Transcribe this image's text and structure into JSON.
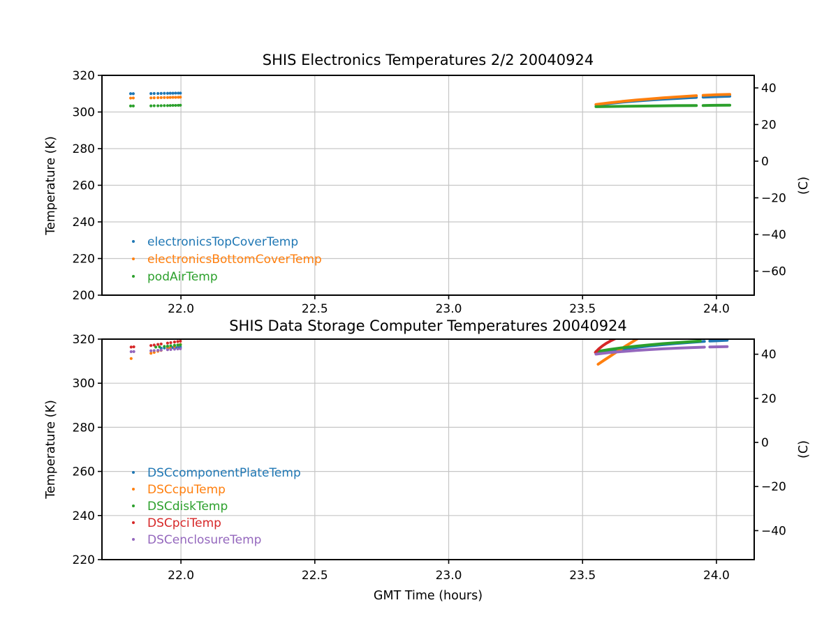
{
  "figure": {
    "background": "#ffffff",
    "grid_color": "#c6c6c6",
    "spine_color": "#000000",
    "celsius_offset": 273.15
  },
  "chart_data": [
    {
      "type": "scatter",
      "title": "SHIS Electronics Temperatures 2/2 20040924",
      "xlabel": "",
      "ylabel_left": "Temperature (K)",
      "ylabel_right": "(C)",
      "xlim": [
        21.705,
        24.141
      ],
      "ylim": [
        200,
        320
      ],
      "grid": true,
      "legend_position": "lower-left",
      "xticks": {
        "values": [
          22.0,
          22.5,
          23.0,
          23.5,
          24.0
        ],
        "labels": [
          "22.0",
          "22.5",
          "23.0",
          "23.5",
          "24.0"
        ]
      },
      "yticks_left": {
        "values": [
          200,
          220,
          240,
          260,
          280,
          300,
          320
        ],
        "labels": [
          "200",
          "220",
          "240",
          "260",
          "280",
          "300",
          "320"
        ]
      },
      "yticks_right_celsius": {
        "values": [
          40,
          20,
          0,
          -20,
          -40,
          -60
        ],
        "labels": [
          "40",
          "20",
          "0",
          "−20",
          "−40",
          "−60"
        ]
      },
      "series": [
        {
          "name": "electronicsTopCoverTemp",
          "color": "#1f77b4",
          "dots": [
            [
              21.812,
              310.0
            ],
            [
              21.822,
              310.0
            ],
            [
              21.888,
              310.05
            ],
            [
              21.9,
              310.1
            ],
            [
              21.914,
              310.1
            ],
            [
              21.926,
              310.15
            ],
            [
              21.938,
              310.2
            ],
            [
              21.95,
              310.2
            ],
            [
              21.96,
              310.25
            ],
            [
              21.97,
              310.25
            ],
            [
              21.98,
              310.3
            ],
            [
              21.99,
              310.3
            ],
            [
              21.998,
              310.3
            ]
          ],
          "line": [
            [
              23.55,
              303.9
            ],
            [
              23.6,
              304.7
            ],
            [
              23.65,
              305.4
            ],
            [
              23.7,
              306.0
            ],
            [
              23.75,
              306.5
            ],
            [
              23.8,
              307.0
            ],
            [
              23.85,
              307.4
            ],
            [
              23.9,
              307.8
            ],
            [
              23.925,
              307.95
            ],
            null,
            [
              23.95,
              308.1
            ],
            [
              24.0,
              308.4
            ],
            [
              24.05,
              308.6
            ]
          ]
        },
        {
          "name": "electronicsBottomCoverTemp",
          "color": "#ff7f0e",
          "dots": [
            [
              21.812,
              307.6
            ],
            [
              21.822,
              307.65
            ],
            [
              21.888,
              307.7
            ],
            [
              21.9,
              307.75
            ],
            [
              21.914,
              307.8
            ],
            [
              21.926,
              307.85
            ],
            [
              21.938,
              307.9
            ],
            [
              21.95,
              307.9
            ],
            [
              21.96,
              307.95
            ],
            [
              21.97,
              308.0
            ],
            [
              21.98,
              308.0
            ],
            [
              21.99,
              308.05
            ],
            [
              21.998,
              308.1
            ]
          ],
          "line": [
            [
              23.55,
              304.1
            ],
            [
              23.6,
              305.0
            ],
            [
              23.65,
              305.8
            ],
            [
              23.7,
              306.5
            ],
            [
              23.75,
              307.1
            ],
            [
              23.8,
              307.7
            ],
            [
              23.85,
              308.2
            ],
            [
              23.9,
              308.7
            ],
            [
              23.925,
              308.9
            ],
            null,
            [
              23.95,
              309.1
            ],
            [
              24.0,
              309.4
            ],
            [
              24.05,
              309.6
            ]
          ]
        },
        {
          "name": "podAirTemp",
          "color": "#2ca02c",
          "dots": [
            [
              21.812,
              303.3
            ],
            [
              21.822,
              303.3
            ],
            [
              21.888,
              303.35
            ],
            [
              21.9,
              303.4
            ],
            [
              21.914,
              303.4
            ],
            [
              21.926,
              303.45
            ],
            [
              21.938,
              303.5
            ],
            [
              21.95,
              303.5
            ],
            [
              21.96,
              303.55
            ],
            [
              21.97,
              303.6
            ],
            [
              21.98,
              303.6
            ],
            [
              21.99,
              303.65
            ],
            [
              21.998,
              303.7
            ]
          ],
          "line": [
            [
              23.55,
              302.9
            ],
            [
              23.62,
              303.05
            ],
            [
              23.7,
              303.2
            ],
            [
              23.78,
              303.35
            ],
            [
              23.85,
              303.45
            ],
            [
              23.925,
              303.5
            ],
            null,
            [
              23.95,
              303.55
            ],
            [
              24.0,
              303.65
            ],
            [
              24.05,
              303.75
            ]
          ]
        }
      ]
    },
    {
      "type": "scatter",
      "title": "SHIS Data Storage Computer Temperatures 20040924",
      "xlabel": "GMT Time (hours)",
      "ylabel_left": "Temperature (K)",
      "ylabel_right": "(C)",
      "xlim": [
        21.705,
        24.141
      ],
      "ylim": [
        220,
        320
      ],
      "grid": true,
      "legend_position": "lower-left",
      "xticks": {
        "values": [
          22.0,
          22.5,
          23.0,
          23.5,
          24.0
        ],
        "labels": [
          "22.0",
          "22.5",
          "23.0",
          "23.5",
          "24.0"
        ]
      },
      "yticks_left": {
        "values": [
          220,
          240,
          260,
          280,
          300,
          320
        ],
        "labels": [
          "220",
          "240",
          "260",
          "280",
          "300",
          "320"
        ]
      },
      "yticks_right_celsius": {
        "values": [
          40,
          20,
          0,
          -20,
          -40
        ],
        "labels": [
          "40",
          "20",
          "0",
          "−20",
          "−40"
        ]
      },
      "series": [
        {
          "name": "DSCcomponentPlateTemp",
          "color": "#1f77b4",
          "dots": [
            [
              21.926,
              315.9
            ],
            [
              21.938,
              316.0
            ],
            [
              21.95,
              316.05
            ],
            [
              21.96,
              316.1
            ],
            [
              21.97,
              316.2
            ],
            [
              21.98,
              316.25
            ],
            [
              21.99,
              316.3
            ],
            [
              21.998,
              316.4
            ]
          ],
          "line": [
            [
              23.55,
              313.6
            ],
            [
              23.6,
              314.6
            ],
            [
              23.65,
              315.5
            ],
            [
              23.7,
              316.2
            ],
            [
              23.75,
              316.9
            ],
            [
              23.8,
              317.5
            ],
            [
              23.85,
              318.0
            ],
            [
              23.9,
              318.5
            ],
            [
              23.955,
              318.95
            ],
            null,
            [
              23.975,
              319.1
            ],
            [
              24.0,
              319.25
            ],
            [
              24.04,
              319.5
            ]
          ]
        },
        {
          "name": "DSCcpuTemp",
          "color": "#ff7f0e",
          "dots": [
            [
              21.814,
              311.2
            ],
            [
              21.888,
              313.6
            ],
            [
              21.9,
              314.0
            ],
            [
              21.914,
              314.5
            ],
            [
              21.926,
              314.9
            ],
            [
              21.95,
              315.7
            ],
            [
              21.96,
              316.1
            ],
            [
              21.976,
              316.7
            ],
            [
              21.99,
              317.3
            ],
            [
              21.998,
              317.6
            ]
          ],
          "line": [
            [
              23.558,
              308.6
            ],
            [
              23.58,
              310.4
            ],
            [
              23.6,
              312.0
            ],
            [
              23.62,
              313.6
            ],
            [
              23.64,
              315.2
            ],
            [
              23.66,
              316.8
            ],
            [
              23.68,
              318.3
            ],
            [
              23.7,
              319.8
            ],
            [
              23.715,
              320.9
            ]
          ]
        },
        {
          "name": "DSCdiskTemp",
          "color": "#2ca02c",
          "dots": [
            [
              21.906,
              316.4
            ],
            [
              21.92,
              316.5
            ],
            [
              21.938,
              316.7
            ],
            [
              21.95,
              316.8
            ],
            [
              21.962,
              317.0
            ],
            [
              21.976,
              317.2
            ],
            [
              21.988,
              317.3
            ],
            [
              21.998,
              317.4
            ]
          ],
          "line": [
            [
              23.55,
              314.3
            ],
            [
              23.6,
              315.3
            ],
            [
              23.65,
              316.1
            ],
            [
              23.7,
              316.8
            ],
            [
              23.75,
              317.4
            ],
            [
              23.8,
              317.95
            ],
            [
              23.85,
              318.4
            ],
            [
              23.9,
              318.8
            ],
            [
              23.94,
              319.1
            ]
          ]
        },
        {
          "name": "DSCpciTemp",
          "color": "#d62728",
          "dots": [
            [
              21.814,
              316.4
            ],
            [
              21.824,
              316.5
            ],
            [
              21.888,
              317.1
            ],
            [
              21.9,
              317.3
            ],
            [
              21.914,
              317.6
            ],
            [
              21.926,
              317.8
            ],
            [
              21.95,
              318.2
            ],
            [
              21.962,
              318.4
            ],
            [
              21.976,
              318.7
            ],
            [
              21.988,
              318.9
            ],
            [
              21.998,
              319.1
            ]
          ],
          "line": [
            [
              23.548,
              314.0
            ],
            [
              23.56,
              315.5
            ],
            [
              23.575,
              317.0
            ],
            [
              23.59,
              318.2
            ],
            [
              23.605,
              319.2
            ],
            [
              23.62,
              320.1
            ],
            [
              23.64,
              321.2
            ]
          ]
        },
        {
          "name": "DSCenclosureTemp",
          "color": "#9467bd",
          "dots": [
            [
              21.814,
              314.3
            ],
            [
              21.824,
              314.35
            ],
            [
              21.888,
              314.7
            ],
            [
              21.9,
              314.8
            ],
            [
              21.914,
              314.9
            ],
            [
              21.926,
              315.0
            ],
            [
              21.95,
              315.2
            ],
            [
              21.962,
              315.3
            ],
            [
              21.976,
              315.45
            ],
            [
              21.988,
              315.55
            ],
            [
              21.998,
              315.65
            ]
          ],
          "line": [
            [
              23.55,
              313.2
            ],
            [
              23.6,
              313.9
            ],
            [
              23.65,
              314.4
            ],
            [
              23.7,
              314.85
            ],
            [
              23.75,
              315.25
            ],
            [
              23.8,
              315.6
            ],
            [
              23.85,
              315.9
            ],
            [
              23.9,
              316.15
            ],
            [
              23.955,
              316.35
            ],
            null,
            [
              23.975,
              316.45
            ],
            [
              24.04,
              316.6
            ]
          ]
        }
      ]
    }
  ]
}
